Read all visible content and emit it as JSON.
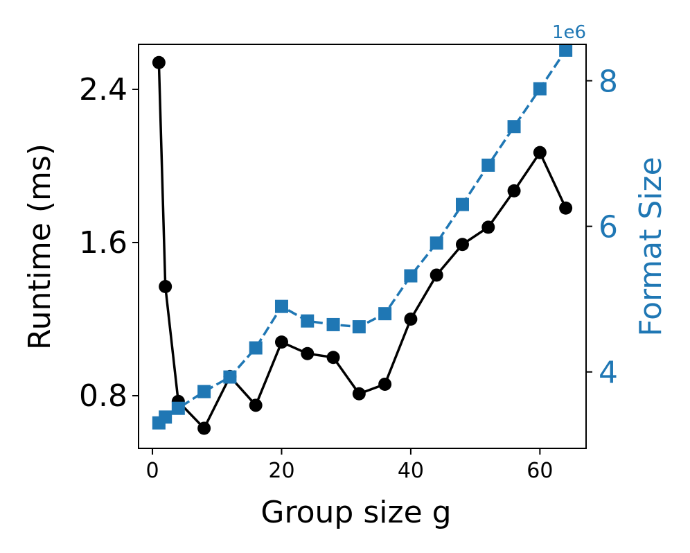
{
  "chart_data": {
    "type": "line",
    "title": "",
    "xlabel": "Group size g",
    "ylabel_left": "Runtime (ms)",
    "ylabel_right": "Format Size",
    "right_axis_multiplier": "1e6",
    "xlim": [
      -2.15,
      67.15
    ],
    "ylim_left": [
      0.525,
      2.635
    ],
    "ylim_right": [
      2.95,
      8.5
    ],
    "x_ticks": [
      0,
      20,
      40,
      60
    ],
    "y_left_ticks": [
      0.8,
      1.6,
      2.4
    ],
    "y_right_ticks": [
      4,
      6,
      8
    ],
    "x_tick_labels": [
      "0",
      "20",
      "40",
      "60"
    ],
    "y_left_tick_labels": [
      "0.8",
      "1.6",
      "2.4"
    ],
    "y_right_tick_labels": [
      "4",
      "6",
      "8"
    ],
    "grid": false,
    "colors": {
      "runtime": "#000000",
      "format_size": "#1f77b4",
      "axis": "#000000"
    },
    "series": [
      {
        "name": "Runtime",
        "axis": "left",
        "marker": "circle",
        "line_style": "solid",
        "color": "#000000",
        "x": [
          1,
          2,
          4,
          8,
          12,
          16,
          20,
          24,
          28,
          32,
          36,
          40,
          44,
          48,
          52,
          56,
          60,
          64
        ],
        "values": [
          2.54,
          1.37,
          0.77,
          0.63,
          0.9,
          0.75,
          1.08,
          1.02,
          1.0,
          0.81,
          0.86,
          1.2,
          1.43,
          1.59,
          1.68,
          1.87,
          2.07,
          1.78
        ]
      },
      {
        "name": "Format Size",
        "axis": "right",
        "marker": "square",
        "line_style": "dashed",
        "color": "#1f77b4",
        "x": [
          1,
          2,
          4,
          8,
          12,
          16,
          20,
          24,
          28,
          32,
          36,
          40,
          44,
          48,
          52,
          56,
          60,
          64
        ],
        "values": [
          3.3,
          3.38,
          3.5,
          3.73,
          3.93,
          4.33,
          4.9,
          4.7,
          4.65,
          4.62,
          4.8,
          5.32,
          5.77,
          6.3,
          6.84,
          7.37,
          7.89,
          8.42
        ]
      }
    ]
  }
}
